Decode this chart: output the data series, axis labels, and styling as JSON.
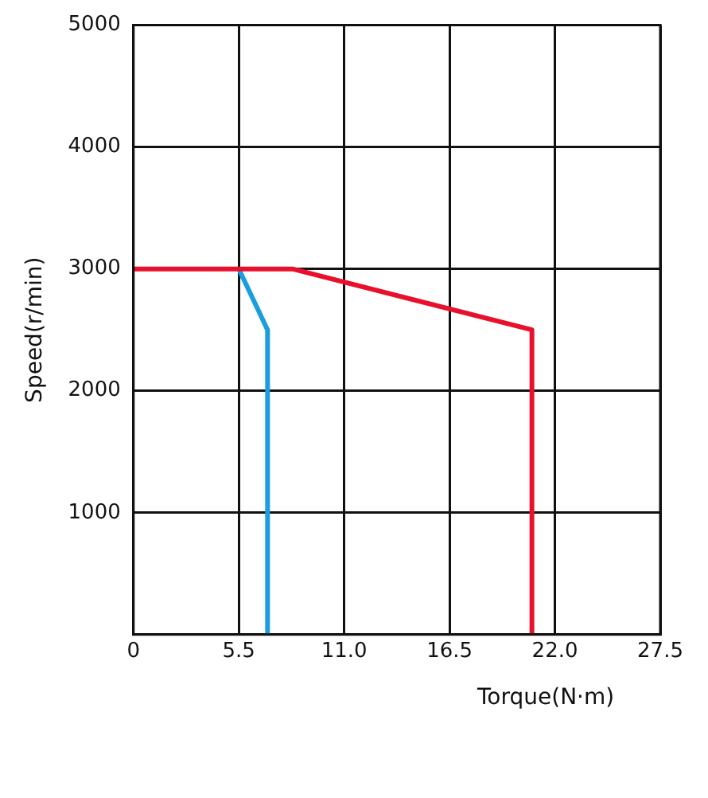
{
  "chart_data": {
    "type": "line",
    "xlabel": "Torque(N·m)",
    "ylabel": "Speed(r/min)",
    "series": [
      {
        "color": "#e8112d",
        "x": [
          0,
          8.3,
          20.8,
          20.8
        ],
        "values": [
          3000,
          3000,
          2500,
          0
        ]
      },
      {
        "color": "#1a9ee0",
        "x": [
          5.5,
          7.0,
          7.0
        ],
        "values": [
          3000,
          2500,
          0
        ]
      }
    ],
    "xlim": [
      0,
      27.5
    ],
    "xticks": [
      0,
      5.5,
      {
        "value": 11,
        "label": "11.0"
      },
      16.5,
      {
        "value": 22,
        "label": "22.0"
      },
      27.5
    ],
    "ylim": [
      0,
      5000
    ],
    "yticks": [
      {
        "value": 0,
        "label": null
      },
      1000,
      2000,
      3000,
      4000,
      5000
    ],
    "grid": true,
    "legend": false,
    "marker": "none"
  }
}
